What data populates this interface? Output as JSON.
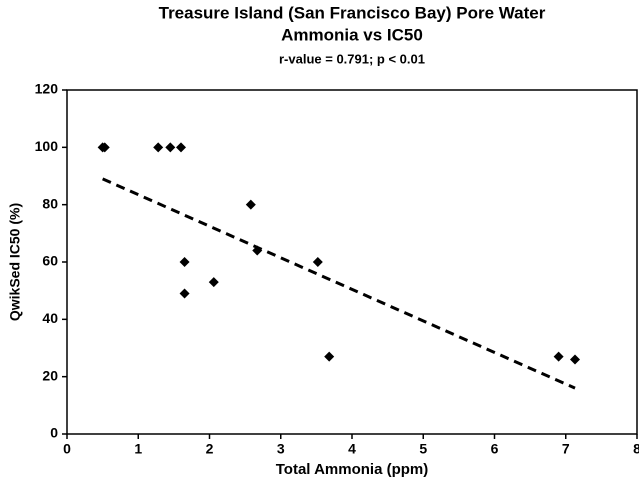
{
  "chart_data": {
    "type": "scatter",
    "title": [
      "Treasure Island (San Francisco Bay) Pore Water",
      "Ammonia vs IC50"
    ],
    "subtitle": "r-value = 0.791; p < 0.01",
    "x_label": "Total Ammonia (ppm)",
    "y_label": "QwikSed IC50 (%)",
    "x": [
      0.5,
      0.53,
      1.28,
      1.45,
      1.6,
      1.65,
      1.65,
      2.06,
      2.58,
      2.67,
      3.52,
      3.68,
      6.9,
      7.13
    ],
    "y": [
      100,
      100,
      100,
      100,
      100,
      60,
      49,
      53,
      80,
      64,
      60,
      27,
      27,
      26
    ],
    "color": "#000000",
    "trendline": {
      "x": [
        0.5,
        7.13
      ],
      "y": [
        89,
        16
      ]
    },
    "xlim": [
      0,
      8
    ],
    "xticks": [
      0,
      1,
      2,
      3,
      4,
      5,
      6,
      7,
      8
    ],
    "ylim": [
      0,
      120
    ],
    "yticks": [
      0,
      20,
      40,
      60,
      80,
      100,
      120
    ]
  }
}
